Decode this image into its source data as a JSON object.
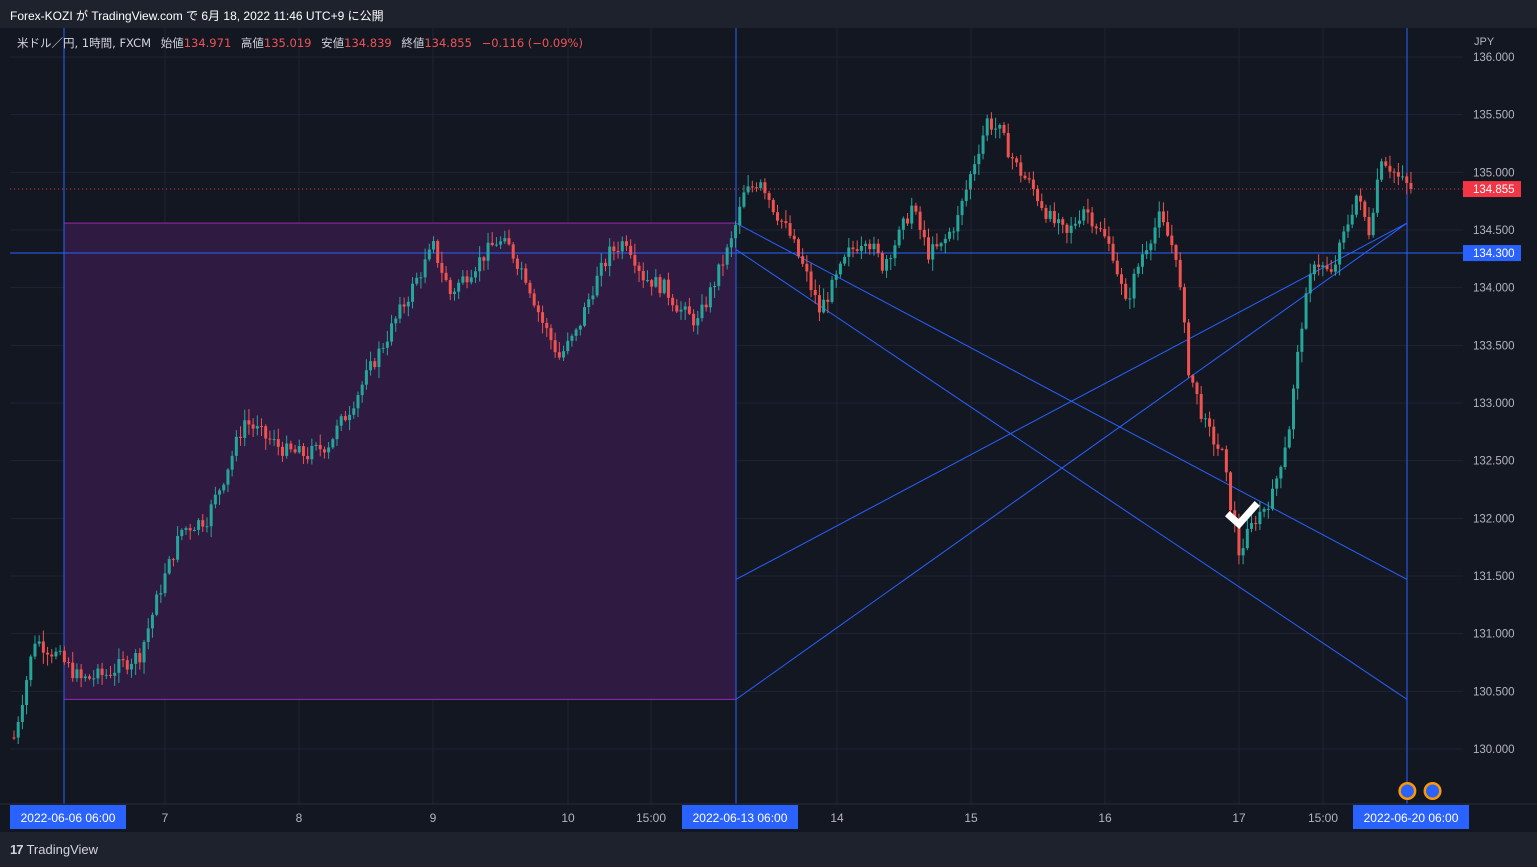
{
  "header": {
    "title": "Forex-KOZI が TradingView.com で 6月 18, 2022 11:46 UTC+9 に公開"
  },
  "legend": {
    "symbol": "米ドル／円, 1時間, FXCM",
    "open_label": "始値",
    "open": "134.971",
    "high_label": "高値",
    "high": "135.019",
    "low_label": "安値",
    "low": "134.839",
    "close_label": "終値",
    "close": "134.855",
    "change": "−0.116 (−0.09%)"
  },
  "footer": {
    "brand": "TradingView"
  },
  "colors": {
    "background": "#131722",
    "up": "#26a69a",
    "down": "#ef5350",
    "drawing": "#2962ff",
    "rectangle_fill": "#2f1a42",
    "rectangle_border": "#9c27b0"
  },
  "chart_data": {
    "type": "candlestick",
    "currency_label": "JPY",
    "ylim": [
      129.55,
      136.2
    ],
    "y_ticks": [
      "130.000",
      "130.500",
      "131.000",
      "131.500",
      "132.000",
      "132.500",
      "133.000",
      "133.500",
      "134.000",
      "134.500",
      "135.000",
      "135.500",
      "136.000"
    ],
    "x_ticks": [
      {
        "label": "2022-06-06   06:00",
        "highlight": true
      },
      {
        "label": "7"
      },
      {
        "label": "8"
      },
      {
        "label": "9"
      },
      {
        "label": "10"
      },
      {
        "label": "15:00"
      },
      {
        "label": "2022-06-13   06:00",
        "highlight": true
      },
      {
        "label": "14"
      },
      {
        "label": "15"
      },
      {
        "label": "16"
      },
      {
        "label": "17"
      },
      {
        "label": "15:00"
      },
      {
        "label": "2022-06-20   06:00",
        "highlight": true
      }
    ],
    "price_labels": [
      {
        "value": 134.855,
        "label": "134.855",
        "color": "#f23645"
      },
      {
        "value": 134.3,
        "label": "134.300",
        "color": "#2962ff"
      }
    ],
    "horizontal_line": 134.3,
    "rectangle": {
      "y_top": 134.56,
      "y_bottom": 130.43
    },
    "crossing_lines": [
      {
        "from": 134.33,
        "to": 130.43
      },
      {
        "from": 134.56,
        "to": 131.47
      },
      {
        "from": 131.47,
        "to": 134.56
      },
      {
        "from": 130.43,
        "to": 134.56
      }
    ],
    "waypoints": [
      [
        0,
        130.1
      ],
      [
        5,
        130.95
      ],
      [
        10,
        130.82
      ],
      [
        16,
        130.6
      ],
      [
        22,
        130.65
      ],
      [
        30,
        130.82
      ],
      [
        35,
        131.4
      ],
      [
        40,
        131.9
      ],
      [
        46,
        132.0
      ],
      [
        50,
        132.35
      ],
      [
        55,
        132.85
      ],
      [
        60,
        132.7
      ],
      [
        65,
        132.58
      ],
      [
        70,
        132.55
      ],
      [
        75,
        132.65
      ],
      [
        80,
        132.95
      ],
      [
        85,
        133.3
      ],
      [
        90,
        133.65
      ],
      [
        95,
        134.0
      ],
      [
        100,
        134.35
      ],
      [
        104,
        133.95
      ],
      [
        110,
        134.2
      ],
      [
        115,
        134.4
      ],
      [
        118,
        134.35
      ],
      [
        122,
        134.1
      ],
      [
        126,
        133.7
      ],
      [
        130,
        133.4
      ],
      [
        134,
        133.6
      ],
      [
        138,
        134.0
      ],
      [
        142,
        134.3
      ],
      [
        146,
        134.42
      ],
      [
        150,
        134.1
      ],
      [
        155,
        134.0
      ],
      [
        159,
        133.8
      ],
      [
        163,
        133.7
      ],
      [
        167,
        134.05
      ],
      [
        171,
        134.4
      ],
      [
        174,
        134.8
      ],
      [
        178,
        134.95
      ],
      [
        181,
        134.7
      ],
      [
        185,
        134.45
      ],
      [
        189,
        134.1
      ],
      [
        192,
        133.8
      ],
      [
        195,
        134.0
      ],
      [
        199,
        134.3
      ],
      [
        203,
        134.45
      ],
      [
        207,
        134.2
      ],
      [
        211,
        134.45
      ],
      [
        214,
        134.7
      ],
      [
        218,
        134.3
      ],
      [
        221,
        134.35
      ],
      [
        225,
        134.6
      ],
      [
        229,
        135.1
      ],
      [
        232,
        135.45
      ],
      [
        235,
        135.35
      ],
      [
        239,
        135.05
      ],
      [
        243,
        134.85
      ],
      [
        247,
        134.6
      ],
      [
        251,
        134.45
      ],
      [
        255,
        134.7
      ],
      [
        258,
        134.55
      ],
      [
        262,
        134.3
      ],
      [
        265,
        133.85
      ],
      [
        269,
        134.3
      ],
      [
        273,
        134.6
      ],
      [
        277,
        134.3
      ],
      [
        280,
        133.3
      ],
      [
        284,
        132.8
      ],
      [
        288,
        132.55
      ],
      [
        292,
        131.7
      ],
      [
        296,
        132.0
      ],
      [
        300,
        132.2
      ],
      [
        304,
        132.8
      ],
      [
        307,
        133.7
      ],
      [
        310,
        134.25
      ],
      [
        314,
        134.1
      ],
      [
        317,
        134.45
      ],
      [
        320,
        134.8
      ],
      [
        323,
        134.5
      ],
      [
        326,
        135.15
      ],
      [
        330,
        134.95
      ],
      [
        333,
        134.855
      ]
    ],
    "bars_total": 334,
    "check_marker_index": 292,
    "event_flags_indices": [
      325,
      331
    ]
  }
}
